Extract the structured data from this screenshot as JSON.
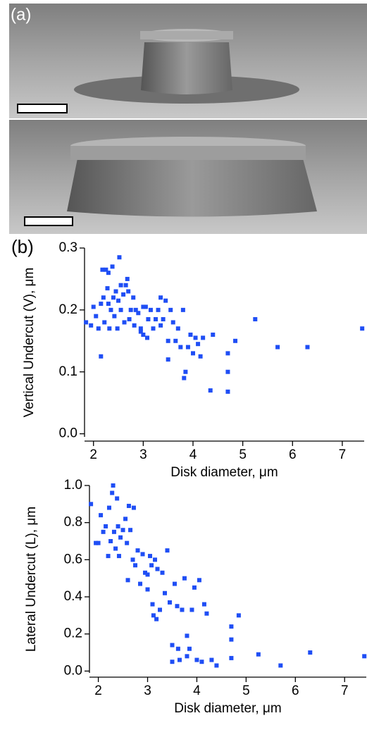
{
  "labels": {
    "a": "(a)",
    "b": "(b)"
  },
  "chart_data": [
    {
      "type": "scatter",
      "xlabel": "Disk diameter, μm",
      "ylabel": "Vertical Undercut (V), μm",
      "color": "#1f4ef5",
      "xlim": [
        1.82,
        7.44
      ],
      "xticks": [
        2,
        3,
        4,
        5,
        6,
        7
      ],
      "ylim": [
        -0.005,
        0.3
      ],
      "yticks": [
        {
          "value": 0,
          "label": "0.0"
        },
        0.1,
        0.2,
        0.3
      ],
      "x": [
        1.85,
        1.95,
        2.0,
        2.05,
        2.1,
        2.15,
        2.15,
        2.18,
        2.2,
        2.22,
        2.25,
        2.28,
        2.3,
        2.3,
        2.32,
        2.35,
        2.38,
        2.4,
        2.42,
        2.45,
        2.48,
        2.5,
        2.52,
        2.55,
        2.55,
        2.6,
        2.62,
        2.65,
        2.68,
        2.7,
        2.72,
        2.75,
        2.8,
        2.82,
        2.85,
        2.9,
        2.95,
        2.95,
        3.0,
        3.0,
        3.05,
        3.08,
        3.1,
        3.15,
        3.2,
        3.25,
        3.3,
        3.35,
        3.35,
        3.4,
        3.45,
        3.5,
        3.5,
        3.55,
        3.6,
        3.65,
        3.7,
        3.75,
        3.8,
        3.82,
        3.85,
        3.9,
        3.95,
        4.0,
        4.05,
        4.1,
        4.15,
        4.2,
        4.35,
        4.4,
        4.7,
        4.7,
        4.7,
        4.85,
        5.25,
        5.7,
        6.3,
        7.4
      ],
      "values": [
        0.18,
        0.175,
        0.205,
        0.19,
        0.17,
        0.21,
        0.125,
        0.265,
        0.22,
        0.18,
        0.265,
        0.235,
        0.26,
        0.21,
        0.17,
        0.2,
        0.27,
        0.22,
        0.19,
        0.23,
        0.17,
        0.215,
        0.285,
        0.24,
        0.2,
        0.225,
        0.18,
        0.24,
        0.25,
        0.23,
        0.185,
        0.2,
        0.22,
        0.175,
        0.2,
        0.195,
        0.17,
        0.165,
        0.205,
        0.16,
        0.205,
        0.155,
        0.185,
        0.2,
        0.17,
        0.185,
        0.2,
        0.22,
        0.175,
        0.185,
        0.215,
        0.15,
        0.12,
        0.2,
        0.18,
        0.15,
        0.17,
        0.14,
        0.2,
        0.09,
        0.1,
        0.14,
        0.16,
        0.13,
        0.155,
        0.145,
        0.125,
        0.155,
        0.07,
        0.16,
        0.13,
        0.1,
        0.068,
        0.15,
        0.185,
        0.14,
        0.14,
        0.17
      ]
    },
    {
      "type": "scatter",
      "xlabel": "Disk diameter, μm",
      "ylabel": "Lateral Undercut (L), μm",
      "color": "#1f4ef5",
      "xlim": [
        1.82,
        7.44
      ],
      "xticks": [
        2,
        3,
        4,
        5,
        6,
        7
      ],
      "ylim": [
        -0.01,
        1.0
      ],
      "yticks": [
        {
          "value": 0,
          "label": "0.0"
        },
        0.2,
        0.4,
        0.6,
        0.8,
        {
          "value": 1,
          "label": "1.0"
        }
      ],
      "x": [
        1.85,
        1.95,
        2.0,
        2.05,
        2.1,
        2.15,
        2.2,
        2.22,
        2.25,
        2.28,
        2.3,
        2.32,
        2.35,
        2.38,
        2.4,
        2.42,
        2.45,
        2.5,
        2.55,
        2.58,
        2.6,
        2.62,
        2.65,
        2.7,
        2.72,
        2.75,
        2.8,
        2.85,
        2.9,
        2.95,
        3.0,
        3.0,
        3.05,
        3.08,
        3.1,
        3.12,
        3.15,
        3.18,
        3.2,
        3.25,
        3.3,
        3.35,
        3.4,
        3.45,
        3.5,
        3.5,
        3.55,
        3.6,
        3.62,
        3.65,
        3.7,
        3.75,
        3.8,
        3.8,
        3.85,
        3.9,
        3.95,
        4.0,
        4.05,
        4.1,
        4.15,
        4.2,
        4.3,
        4.4,
        4.7,
        4.7,
        4.7,
        4.85,
        5.25,
        5.7,
        6.3,
        7.4
      ],
      "values": [
        0.9,
        0.69,
        0.69,
        0.84,
        0.75,
        0.78,
        0.62,
        0.88,
        0.7,
        0.96,
        1.0,
        0.75,
        0.66,
        0.93,
        0.78,
        0.62,
        0.72,
        0.76,
        0.82,
        0.69,
        0.49,
        0.89,
        0.76,
        0.6,
        0.88,
        0.57,
        0.65,
        0.47,
        0.63,
        0.53,
        0.52,
        0.44,
        0.62,
        0.57,
        0.36,
        0.3,
        0.6,
        0.28,
        0.55,
        0.33,
        0.53,
        0.42,
        0.65,
        0.37,
        0.14,
        0.05,
        0.47,
        0.35,
        0.12,
        0.06,
        0.33,
        0.5,
        0.19,
        0.08,
        0.12,
        0.33,
        0.45,
        0.06,
        0.49,
        0.05,
        0.36,
        0.31,
        0.06,
        0.03,
        0.24,
        0.17,
        0.07,
        0.3,
        0.09,
        0.03,
        0.1,
        0.08
      ]
    }
  ]
}
